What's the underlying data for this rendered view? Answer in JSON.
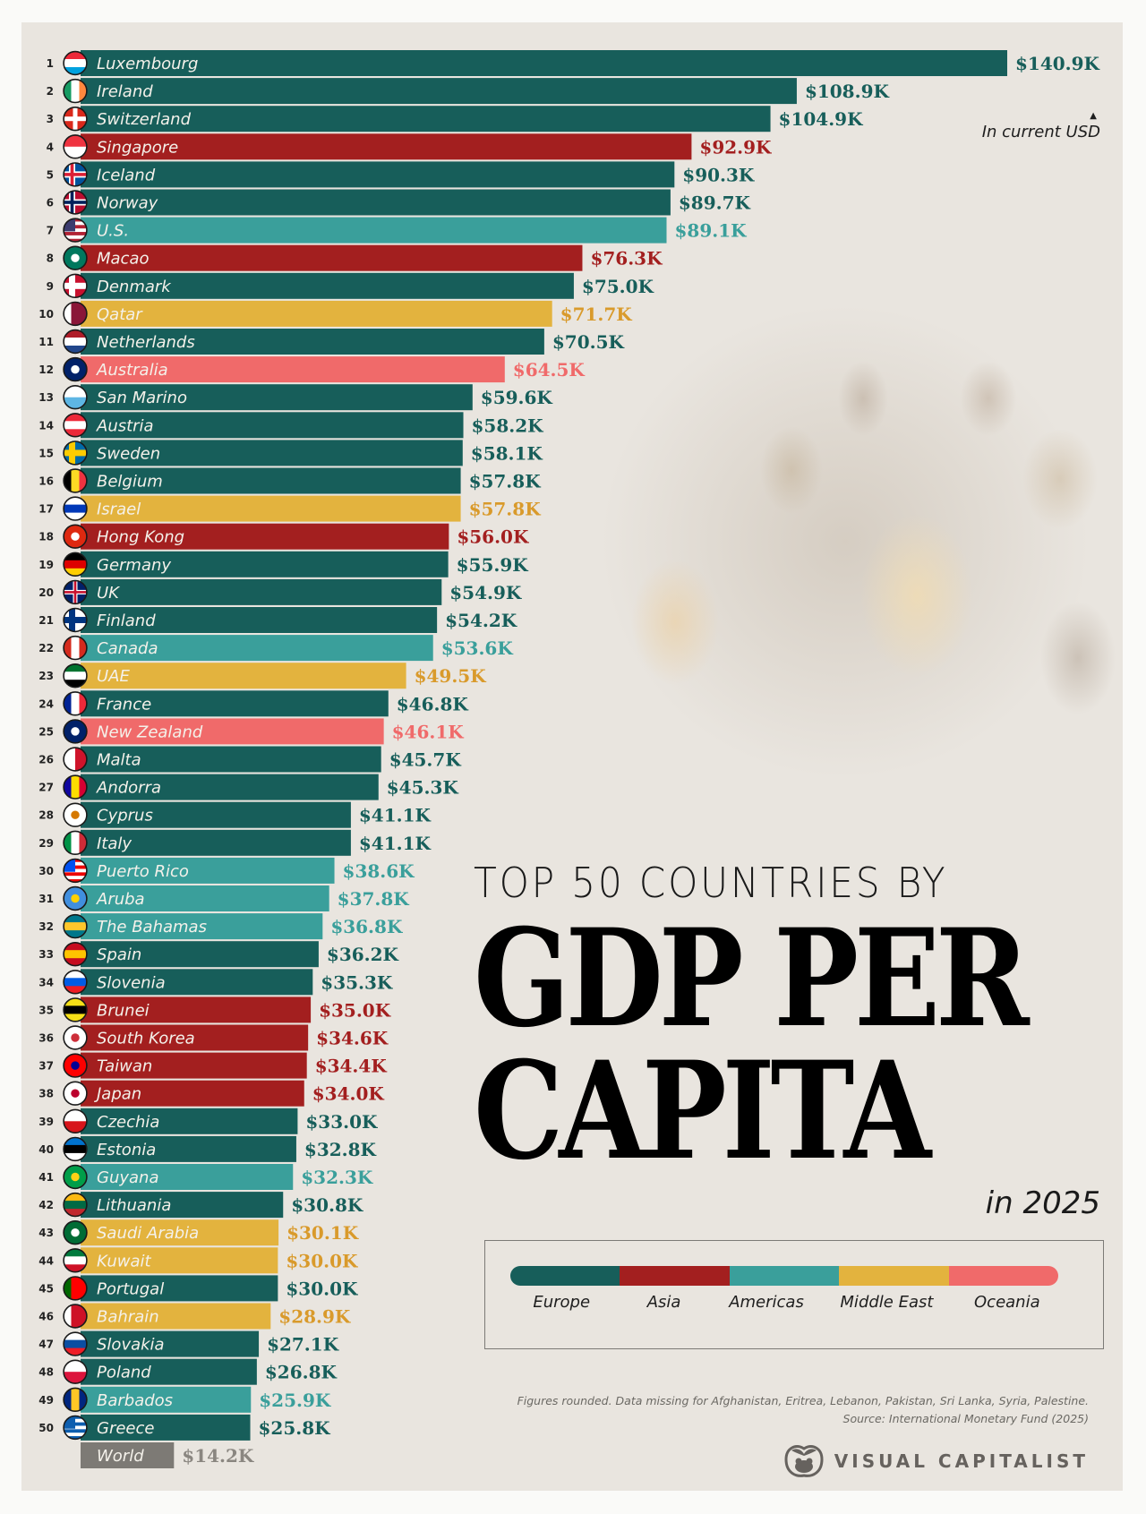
{
  "chart_data": {
    "type": "bar",
    "orientation": "horizontal",
    "title": "TOP 50 COUNTRIES BY GDP PER CAPITA",
    "title_lines": [
      "TOP 50 COUNTRIES BY",
      "GDP PER",
      "CAPITA"
    ],
    "subtitle": "in 2025",
    "unit_note": "In current USD",
    "xlabel": "",
    "ylabel": "",
    "xlim": [
      0,
      140.9
    ],
    "grid": false,
    "legend_position": "bottom-right",
    "legend": [
      {
        "key": "Europe",
        "label": "Europe",
        "color": "#175e5a"
      },
      {
        "key": "Asia",
        "label": "Asia",
        "color": "#a31f1f"
      },
      {
        "key": "Americas",
        "label": "Americas",
        "color": "#3a9f9b"
      },
      {
        "key": "MiddleEast",
        "label": "Middle East",
        "color": "#e3b33e"
      },
      {
        "key": "Oceania",
        "label": "Oceania",
        "color": "#f06a6a"
      }
    ],
    "value_colors": {
      "Europe": "#175e5a",
      "Asia": "#a31f1f",
      "Americas": "#3a9f9b",
      "MiddleEast": "#d99a2b",
      "Oceania": "#f06a6a",
      "World": "#8a8680"
    },
    "series": [
      {
        "rank": 1,
        "country": "Luxembourg",
        "region": "Europe",
        "value": 140.9,
        "label": "$140.9K"
      },
      {
        "rank": 2,
        "country": "Ireland",
        "region": "Europe",
        "value": 108.9,
        "label": "$108.9K"
      },
      {
        "rank": 3,
        "country": "Switzerland",
        "region": "Europe",
        "value": 104.9,
        "label": "$104.9K"
      },
      {
        "rank": 4,
        "country": "Singapore",
        "region": "Asia",
        "value": 92.9,
        "label": "$92.9K"
      },
      {
        "rank": 5,
        "country": "Iceland",
        "region": "Europe",
        "value": 90.3,
        "label": "$90.3K"
      },
      {
        "rank": 6,
        "country": "Norway",
        "region": "Europe",
        "value": 89.7,
        "label": "$89.7K"
      },
      {
        "rank": 7,
        "country": "U.S.",
        "region": "Americas",
        "value": 89.1,
        "label": "$89.1K"
      },
      {
        "rank": 8,
        "country": "Macao",
        "region": "Asia",
        "value": 76.3,
        "label": "$76.3K"
      },
      {
        "rank": 9,
        "country": "Denmark",
        "region": "Europe",
        "value": 75.0,
        "label": "$75.0K"
      },
      {
        "rank": 10,
        "country": "Qatar",
        "region": "MiddleEast",
        "value": 71.7,
        "label": "$71.7K"
      },
      {
        "rank": 11,
        "country": "Netherlands",
        "region": "Europe",
        "value": 70.5,
        "label": "$70.5K"
      },
      {
        "rank": 12,
        "country": "Australia",
        "region": "Oceania",
        "value": 64.5,
        "label": "$64.5K"
      },
      {
        "rank": 13,
        "country": "San Marino",
        "region": "Europe",
        "value": 59.6,
        "label": "$59.6K"
      },
      {
        "rank": 14,
        "country": "Austria",
        "region": "Europe",
        "value": 58.2,
        "label": "$58.2K"
      },
      {
        "rank": 15,
        "country": "Sweden",
        "region": "Europe",
        "value": 58.1,
        "label": "$58.1K"
      },
      {
        "rank": 16,
        "country": "Belgium",
        "region": "Europe",
        "value": 57.8,
        "label": "$57.8K"
      },
      {
        "rank": 17,
        "country": "Israel",
        "region": "MiddleEast",
        "value": 57.8,
        "label": "$57.8K"
      },
      {
        "rank": 18,
        "country": "Hong Kong",
        "region": "Asia",
        "value": 56.0,
        "label": "$56.0K"
      },
      {
        "rank": 19,
        "country": "Germany",
        "region": "Europe",
        "value": 55.9,
        "label": "$55.9K"
      },
      {
        "rank": 20,
        "country": "UK",
        "region": "Europe",
        "value": 54.9,
        "label": "$54.9K"
      },
      {
        "rank": 21,
        "country": "Finland",
        "region": "Europe",
        "value": 54.2,
        "label": "$54.2K"
      },
      {
        "rank": 22,
        "country": "Canada",
        "region": "Americas",
        "value": 53.6,
        "label": "$53.6K"
      },
      {
        "rank": 23,
        "country": "UAE",
        "region": "MiddleEast",
        "value": 49.5,
        "label": "$49.5K"
      },
      {
        "rank": 24,
        "country": "France",
        "region": "Europe",
        "value": 46.8,
        "label": "$46.8K"
      },
      {
        "rank": 25,
        "country": "New Zealand",
        "region": "Oceania",
        "value": 46.1,
        "label": "$46.1K"
      },
      {
        "rank": 26,
        "country": "Malta",
        "region": "Europe",
        "value": 45.7,
        "label": "$45.7K"
      },
      {
        "rank": 27,
        "country": "Andorra",
        "region": "Europe",
        "value": 45.3,
        "label": "$45.3K"
      },
      {
        "rank": 28,
        "country": "Cyprus",
        "region": "Europe",
        "value": 41.1,
        "label": "$41.1K"
      },
      {
        "rank": 29,
        "country": "Italy",
        "region": "Europe",
        "value": 41.1,
        "label": "$41.1K"
      },
      {
        "rank": 30,
        "country": "Puerto Rico",
        "region": "Americas",
        "value": 38.6,
        "label": "$38.6K"
      },
      {
        "rank": 31,
        "country": "Aruba",
        "region": "Americas",
        "value": 37.8,
        "label": "$37.8K"
      },
      {
        "rank": 32,
        "country": "The Bahamas",
        "region": "Americas",
        "value": 36.8,
        "label": "$36.8K"
      },
      {
        "rank": 33,
        "country": "Spain",
        "region": "Europe",
        "value": 36.2,
        "label": "$36.2K"
      },
      {
        "rank": 34,
        "country": "Slovenia",
        "region": "Europe",
        "value": 35.3,
        "label": "$35.3K"
      },
      {
        "rank": 35,
        "country": "Brunei",
        "region": "Asia",
        "value": 35.0,
        "label": "$35.0K"
      },
      {
        "rank": 36,
        "country": "South Korea",
        "region": "Asia",
        "value": 34.6,
        "label": "$34.6K"
      },
      {
        "rank": 37,
        "country": "Taiwan",
        "region": "Asia",
        "value": 34.4,
        "label": "$34.4K"
      },
      {
        "rank": 38,
        "country": "Japan",
        "region": "Asia",
        "value": 34.0,
        "label": "$34.0K"
      },
      {
        "rank": 39,
        "country": "Czechia",
        "region": "Europe",
        "value": 33.0,
        "label": "$33.0K"
      },
      {
        "rank": 40,
        "country": "Estonia",
        "region": "Europe",
        "value": 32.8,
        "label": "$32.8K"
      },
      {
        "rank": 41,
        "country": "Guyana",
        "region": "Americas",
        "value": 32.3,
        "label": "$32.3K"
      },
      {
        "rank": 42,
        "country": "Lithuania",
        "region": "Europe",
        "value": 30.8,
        "label": "$30.8K"
      },
      {
        "rank": 43,
        "country": "Saudi Arabia",
        "region": "MiddleEast",
        "value": 30.1,
        "label": "$30.1K"
      },
      {
        "rank": 44,
        "country": "Kuwait",
        "region": "MiddleEast",
        "value": 30.0,
        "label": "$30.0K"
      },
      {
        "rank": 45,
        "country": "Portugal",
        "region": "Europe",
        "value": 30.0,
        "label": "$30.0K"
      },
      {
        "rank": 46,
        "country": "Bahrain",
        "region": "MiddleEast",
        "value": 28.9,
        "label": "$28.9K"
      },
      {
        "rank": 47,
        "country": "Slovakia",
        "region": "Europe",
        "value": 27.1,
        "label": "$27.1K"
      },
      {
        "rank": 48,
        "country": "Poland",
        "region": "Europe",
        "value": 26.8,
        "label": "$26.8K"
      },
      {
        "rank": 49,
        "country": "Barbados",
        "region": "Americas",
        "value": 25.9,
        "label": "$25.9K"
      },
      {
        "rank": 50,
        "country": "Greece",
        "region": "Europe",
        "value": 25.8,
        "label": "$25.8K"
      }
    ],
    "reference": {
      "country": "World",
      "region": "World",
      "value": 14.2,
      "label": "$14.2K",
      "color": "#7d7a75"
    }
  },
  "flags": {
    "Luxembourg": {
      "type": "h",
      "colors": [
        "#ed2939",
        "#ffffff",
        "#00a1de"
      ]
    },
    "Ireland": {
      "type": "v",
      "colors": [
        "#169b62",
        "#ffffff",
        "#ff883e"
      ]
    },
    "Switzerland": {
      "type": "cross",
      "colors": [
        "#da291c",
        "#ffffff"
      ]
    },
    "Singapore": {
      "type": "h",
      "colors": [
        "#ef3340",
        "#ffffff"
      ]
    },
    "Iceland": {
      "type": "nordic",
      "colors": [
        "#02529c",
        "#ffffff",
        "#dc1e35"
      ]
    },
    "Norway": {
      "type": "nordic",
      "colors": [
        "#ba0c2f",
        "#ffffff",
        "#00205b"
      ]
    },
    "U.S.": {
      "type": "stripes",
      "colors": [
        "#b22234",
        "#ffffff",
        "#3c3b6e"
      ]
    },
    "Macao": {
      "type": "solid",
      "colors": [
        "#00785e",
        "#ffffff"
      ]
    },
    "Denmark": {
      "type": "nordic",
      "colors": [
        "#c8102e",
        "#ffffff",
        "#ffffff"
      ]
    },
    "Qatar": {
      "type": "v",
      "colors": [
        "#ffffff",
        "#8a1538",
        "#8a1538"
      ]
    },
    "Netherlands": {
      "type": "h",
      "colors": [
        "#ae1c28",
        "#ffffff",
        "#21468b"
      ]
    },
    "Australia": {
      "type": "solid",
      "colors": [
        "#012169",
        "#ffffff"
      ]
    },
    "San Marino": {
      "type": "h",
      "colors": [
        "#ffffff",
        "#5eb6e4"
      ]
    },
    "Austria": {
      "type": "h",
      "colors": [
        "#ed2939",
        "#ffffff",
        "#ed2939"
      ]
    },
    "Sweden": {
      "type": "nordic",
      "colors": [
        "#006aa7",
        "#fecc00",
        "#fecc00"
      ]
    },
    "Belgium": {
      "type": "v",
      "colors": [
        "#000000",
        "#fdda24",
        "#ef3340"
      ]
    },
    "Israel": {
      "type": "h",
      "colors": [
        "#ffffff",
        "#0038b8",
        "#ffffff"
      ]
    },
    "Hong Kong": {
      "type": "solid",
      "colors": [
        "#de2910",
        "#ffffff"
      ]
    },
    "Germany": {
      "type": "h",
      "colors": [
        "#000000",
        "#dd0000",
        "#ffce00"
      ]
    },
    "UK": {
      "type": "cross",
      "colors": [
        "#012169",
        "#c8102e"
      ]
    },
    "Finland": {
      "type": "nordic",
      "colors": [
        "#ffffff",
        "#003580",
        "#003580"
      ]
    },
    "Canada": {
      "type": "v",
      "colors": [
        "#d52b1e",
        "#ffffff",
        "#d52b1e"
      ]
    },
    "UAE": {
      "type": "h",
      "colors": [
        "#00732f",
        "#ffffff",
        "#000000"
      ]
    },
    "France": {
      "type": "v",
      "colors": [
        "#002395",
        "#ffffff",
        "#ed2939"
      ]
    },
    "New Zealand": {
      "type": "solid",
      "colors": [
        "#012169",
        "#ffffff"
      ]
    },
    "Malta": {
      "type": "v",
      "colors": [
        "#ffffff",
        "#cf142b"
      ]
    },
    "Andorra": {
      "type": "v",
      "colors": [
        "#10069f",
        "#fedd00",
        "#d50032"
      ]
    },
    "Cyprus": {
      "type": "solid",
      "colors": [
        "#ffffff",
        "#d57800"
      ]
    },
    "Italy": {
      "type": "v",
      "colors": [
        "#009246",
        "#ffffff",
        "#ce2b37"
      ]
    },
    "Puerto Rico": {
      "type": "stripes",
      "colors": [
        "#ed0000",
        "#ffffff",
        "#0050f0"
      ]
    },
    "Aruba": {
      "type": "solid",
      "colors": [
        "#418fde",
        "#ffd100"
      ]
    },
    "The Bahamas": {
      "type": "h",
      "colors": [
        "#00778b",
        "#ffc72c",
        "#00778b"
      ]
    },
    "Spain": {
      "type": "h",
      "colors": [
        "#c60b1e",
        "#ffc400",
        "#c60b1e"
      ]
    },
    "Slovenia": {
      "type": "h",
      "colors": [
        "#ffffff",
        "#005ce5",
        "#ed1c24"
      ]
    },
    "Brunei": {
      "type": "h",
      "colors": [
        "#f7e017",
        "#000000",
        "#f7e017"
      ]
    },
    "South Korea": {
      "type": "solid",
      "colors": [
        "#ffffff",
        "#cd2e3a"
      ]
    },
    "Taiwan": {
      "type": "solid",
      "colors": [
        "#fe0000",
        "#000095"
      ]
    },
    "Japan": {
      "type": "solid",
      "colors": [
        "#ffffff",
        "#bc002d"
      ]
    },
    "Czechia": {
      "type": "h",
      "colors": [
        "#ffffff",
        "#d7141a"
      ]
    },
    "Estonia": {
      "type": "h",
      "colors": [
        "#0072ce",
        "#000000",
        "#ffffff"
      ]
    },
    "Guyana": {
      "type": "solid",
      "colors": [
        "#009e49",
        "#fcd116"
      ]
    },
    "Lithuania": {
      "type": "h",
      "colors": [
        "#fdb913",
        "#006a44",
        "#c1272d"
      ]
    },
    "Saudi Arabia": {
      "type": "solid",
      "colors": [
        "#006c35",
        "#ffffff"
      ]
    },
    "Kuwait": {
      "type": "h",
      "colors": [
        "#007a3d",
        "#ffffff",
        "#ce1126"
      ]
    },
    "Portugal": {
      "type": "v",
      "colors": [
        "#006600",
        "#ff0000",
        "#ff0000"
      ]
    },
    "Bahrain": {
      "type": "v",
      "colors": [
        "#ffffff",
        "#ce1126",
        "#ce1126"
      ]
    },
    "Slovakia": {
      "type": "h",
      "colors": [
        "#ffffff",
        "#0b4ea2",
        "#ee1c25"
      ]
    },
    "Poland": {
      "type": "h",
      "colors": [
        "#ffffff",
        "#dc143c"
      ]
    },
    "Barbados": {
      "type": "v",
      "colors": [
        "#00267f",
        "#ffc726",
        "#00267f"
      ]
    },
    "Greece": {
      "type": "stripes",
      "colors": [
        "#0d5eaf",
        "#ffffff",
        "#0d5eaf"
      ]
    }
  },
  "header": {
    "unit_note": "In current USD"
  },
  "title": {
    "line1": "TOP 50 COUNTRIES BY",
    "line2": "GDP PER",
    "line3": "CAPITA",
    "year": "in 2025"
  },
  "legend": {
    "items": [
      "Europe",
      "Asia",
      "Americas",
      "Middle East",
      "Oceania"
    ]
  },
  "footer": {
    "note": "Figures rounded. Data missing for Afghanistan, Eritrea, Lebanon, Pakistan, Sri Lanka, Syria, Palestine.",
    "source": "Source: International Monetary Fund (2025)",
    "brand": "VISUAL CAPITALIST",
    "brand_icon": "visual-capitalist-logo-icon"
  }
}
